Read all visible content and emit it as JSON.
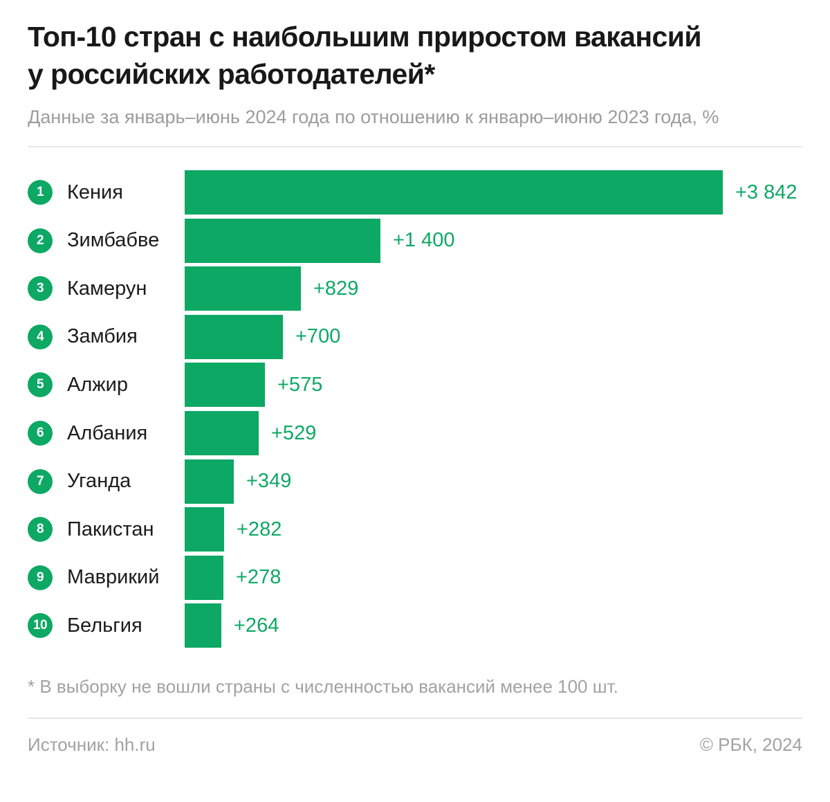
{
  "chart_data": {
    "type": "bar",
    "orientation": "horizontal",
    "title": "Топ-10 стран с наибольшим приростом вакансий у российских работодателей*",
    "subtitle": "Данные за январь–июнь 2024 года по отношению к январю–июню 2023 года, %",
    "unit": "%",
    "xlim": [
      0,
      3842
    ],
    "bar_color": "#0DA864",
    "grid": false,
    "legend": false,
    "categories": [
      "Кения",
      "Зимбабве",
      "Камерун",
      "Замбия",
      "Алжир",
      "Албания",
      "Уганда",
      "Пакистан",
      "Маврикий",
      "Бельгия"
    ],
    "values": [
      3842,
      1400,
      829,
      700,
      575,
      529,
      349,
      282,
      278,
      264
    ],
    "rows": [
      {
        "rank": "1",
        "country": "Кения",
        "value": 3842,
        "value_label": "+3 842"
      },
      {
        "rank": "2",
        "country": "Зимбабве",
        "value": 1400,
        "value_label": "+1 400"
      },
      {
        "rank": "3",
        "country": "Камерун",
        "value": 829,
        "value_label": "+829"
      },
      {
        "rank": "4",
        "country": "Замбия",
        "value": 700,
        "value_label": "+700"
      },
      {
        "rank": "5",
        "country": "Алжир",
        "value": 575,
        "value_label": "+575"
      },
      {
        "rank": "6",
        "country": "Албания",
        "value": 529,
        "value_label": "+529"
      },
      {
        "rank": "7",
        "country": "Уганда",
        "value": 349,
        "value_label": "+349"
      },
      {
        "rank": "8",
        "country": "Пакистан",
        "value": 282,
        "value_label": "+282"
      },
      {
        "rank": "9",
        "country": "Маврикий",
        "value": 278,
        "value_label": "+278"
      },
      {
        "rank": "10",
        "country": "Бельгия",
        "value": 264,
        "value_label": "+264"
      }
    ]
  },
  "footnote": "* В выборку не вошли страны с численностью вакансий менее 100 шт.",
  "footer": {
    "source": "Источник: hh.ru",
    "copyright": "© РБК, 2024"
  },
  "colors": {
    "accent_green": "#0DA864",
    "title_text": "#181818",
    "muted_text": "#9C9C9C",
    "divider": "#E7E7E7"
  }
}
